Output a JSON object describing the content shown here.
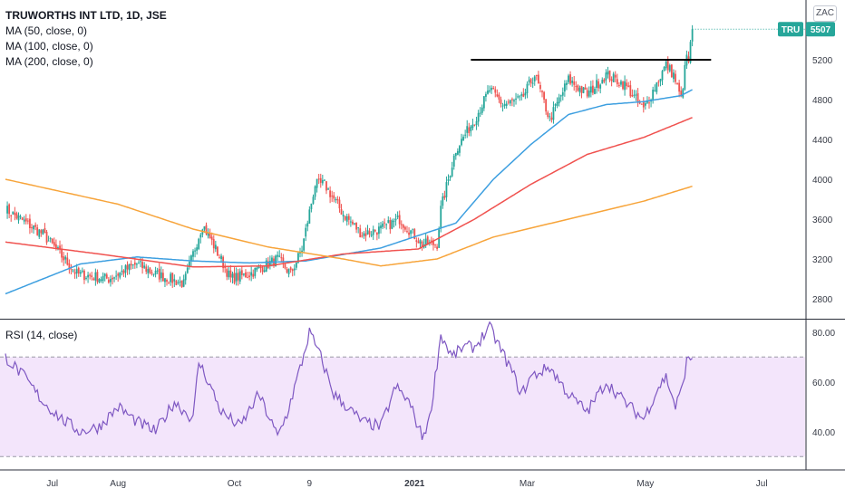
{
  "header": {
    "title": "TRUWORTHS INT LTD, 1D, JSE",
    "ma_lines": [
      "MA (50, close, 0)",
      "MA (100, close, 0)",
      "MA (200, close, 0)"
    ],
    "compare_badge": "ZAC"
  },
  "price_tag": {
    "symbol": "TRU",
    "value": "5507"
  },
  "rsi_panel": {
    "title": "RSI (14, close)"
  },
  "chart_data": [
    {
      "type": "candlestick",
      "title": "TRUWORTHS INT LTD, 1D, JSE",
      "y_ticks": [
        "5200",
        "4800",
        "4400",
        "4000",
        "3600",
        "3200",
        "2800"
      ],
      "y_tick_values": [
        5200,
        4800,
        4400,
        4000,
        3600,
        3200,
        2800
      ],
      "ylim": [
        2600,
        5800
      ],
      "x_ticks": [
        "Jul",
        "Aug",
        "Oct",
        "9",
        "2021",
        "Mar",
        "May",
        "Jul"
      ],
      "x_tick_bold": [
        false,
        false,
        false,
        false,
        true,
        false,
        false,
        false
      ],
      "x_tick_index": [
        25,
        60,
        122,
        162,
        218,
        278,
        341,
        403
      ],
      "n_bars": 450,
      "last_price": 5507,
      "resistance_level": 5200,
      "resistance_range_index": [
        248,
        376
      ],
      "series": [
        {
          "name": "MA (50, close, 0)",
          "color": "#3d9fe0",
          "x": [
            0,
            40,
            70,
            100,
            130,
            160,
            200,
            240,
            260,
            280,
            300,
            320,
            340,
            360,
            366
          ],
          "y": [
            2850,
            3150,
            3220,
            3180,
            3160,
            3180,
            3310,
            3560,
            4000,
            4350,
            4650,
            4750,
            4780,
            4840,
            4900
          ]
        },
        {
          "name": "MA (100, close, 0)",
          "color": "#f0524f",
          "x": [
            0,
            50,
            100,
            140,
            180,
            220,
            250,
            280,
            310,
            340,
            366
          ],
          "y": [
            3370,
            3250,
            3120,
            3130,
            3250,
            3300,
            3600,
            3950,
            4250,
            4420,
            4620
          ]
        },
        {
          "name": "MA (200, close, 0)",
          "color": "#f7a43a",
          "x": [
            0,
            60,
            100,
            140,
            180,
            200,
            230,
            260,
            300,
            340,
            366
          ],
          "y": [
            4000,
            3750,
            3500,
            3320,
            3200,
            3130,
            3200,
            3420,
            3600,
            3780,
            3930
          ]
        }
      ],
      "key_closes": {
        "x": [
          0,
          20,
          38,
          55,
          70,
          80,
          95,
          105,
          112,
          120,
          130,
          145,
          152,
          158,
          165,
          170,
          180,
          190,
          200,
          210,
          222,
          230,
          232,
          240,
          250,
          258,
          265,
          275,
          282,
          290,
          300,
          310,
          320,
          330,
          340,
          348,
          352,
          356,
          360,
          363,
          365,
          366
        ],
        "y": [
          3700,
          3450,
          3050,
          3000,
          3150,
          3050,
          2950,
          3550,
          3300,
          3000,
          3050,
          3200,
          3050,
          3300,
          3950,
          3950,
          3650,
          3450,
          3500,
          3600,
          3350,
          3350,
          3700,
          4300,
          4600,
          4900,
          4750,
          4800,
          5050,
          4600,
          5000,
          4850,
          5050,
          4950,
          4700,
          5000,
          5150,
          5050,
          4800,
          5250,
          5400,
          5507
        ]
      }
    },
    {
      "type": "line",
      "title": "RSI (14, close)",
      "y_ticks": [
        "80.00",
        "60.00",
        "40.00"
      ],
      "y_tick_values": [
        80,
        60,
        40
      ],
      "ylim": [
        25,
        85
      ],
      "band": [
        30,
        70
      ],
      "series": [
        {
          "name": "RSI (14, close)",
          "color": "#7e57c2",
          "x": [
            0,
            10,
            20,
            30,
            40,
            50,
            60,
            70,
            80,
            90,
            100,
            103,
            107,
            115,
            125,
            135,
            145,
            150,
            158,
            162,
            168,
            175,
            182,
            190,
            200,
            208,
            215,
            222,
            226,
            232,
            238,
            244,
            250,
            258,
            264,
            270,
            275,
            280,
            290,
            300,
            310,
            320,
            330,
            340,
            348,
            352,
            355,
            357,
            360,
            363,
            366
          ],
          "y": [
            70,
            62,
            52,
            45,
            40,
            42,
            50,
            44,
            40,
            52,
            45,
            68,
            62,
            48,
            42,
            55,
            38,
            47,
            68,
            80,
            70,
            55,
            50,
            44,
            42,
            58,
            52,
            38,
            45,
            79,
            70,
            74,
            74,
            82,
            73,
            64,
            55,
            62,
            66,
            55,
            48,
            60,
            52,
            45,
            58,
            62,
            55,
            50,
            56,
            68,
            70
          ]
        }
      ]
    }
  ]
}
